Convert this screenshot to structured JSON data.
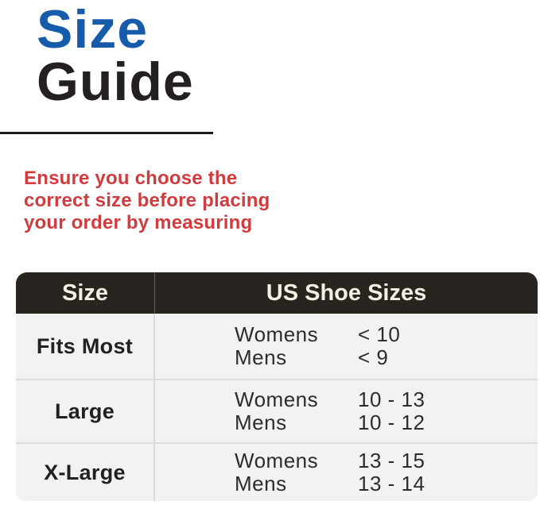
{
  "title": {
    "word1": "Size",
    "word2": "Guide"
  },
  "subtitle": {
    "lines": [
      "Ensure you choose the",
      "correct size before placing",
      "your order by measuring"
    ]
  },
  "table": {
    "header": {
      "col1": "Size",
      "col2": "US Shoe Sizes"
    },
    "rows": [
      {
        "size": "Fits Most",
        "entries": [
          {
            "label": "Womens",
            "value": "< 10"
          },
          {
            "label": "Mens",
            "value": "< 9"
          }
        ]
      },
      {
        "size": "Large",
        "entries": [
          {
            "label": "Womens",
            "value": "10 - 13"
          },
          {
            "label": "Mens",
            "value": "10 - 12"
          }
        ]
      },
      {
        "size": "X-Large",
        "entries": [
          {
            "label": "Womens",
            "value": "13 - 15"
          },
          {
            "label": "Mens",
            "value": "13 - 14"
          }
        ]
      }
    ]
  },
  "colors": {
    "title_blue": "#175CAB",
    "title_dark": "#242021",
    "warning_red": "#D23B3E",
    "header_bg": "#282420",
    "header_text": "#F2EFE3",
    "row_bg": "#F2F2F2",
    "divider": "#DCDCDC",
    "body_text": "#2E2B2C"
  }
}
